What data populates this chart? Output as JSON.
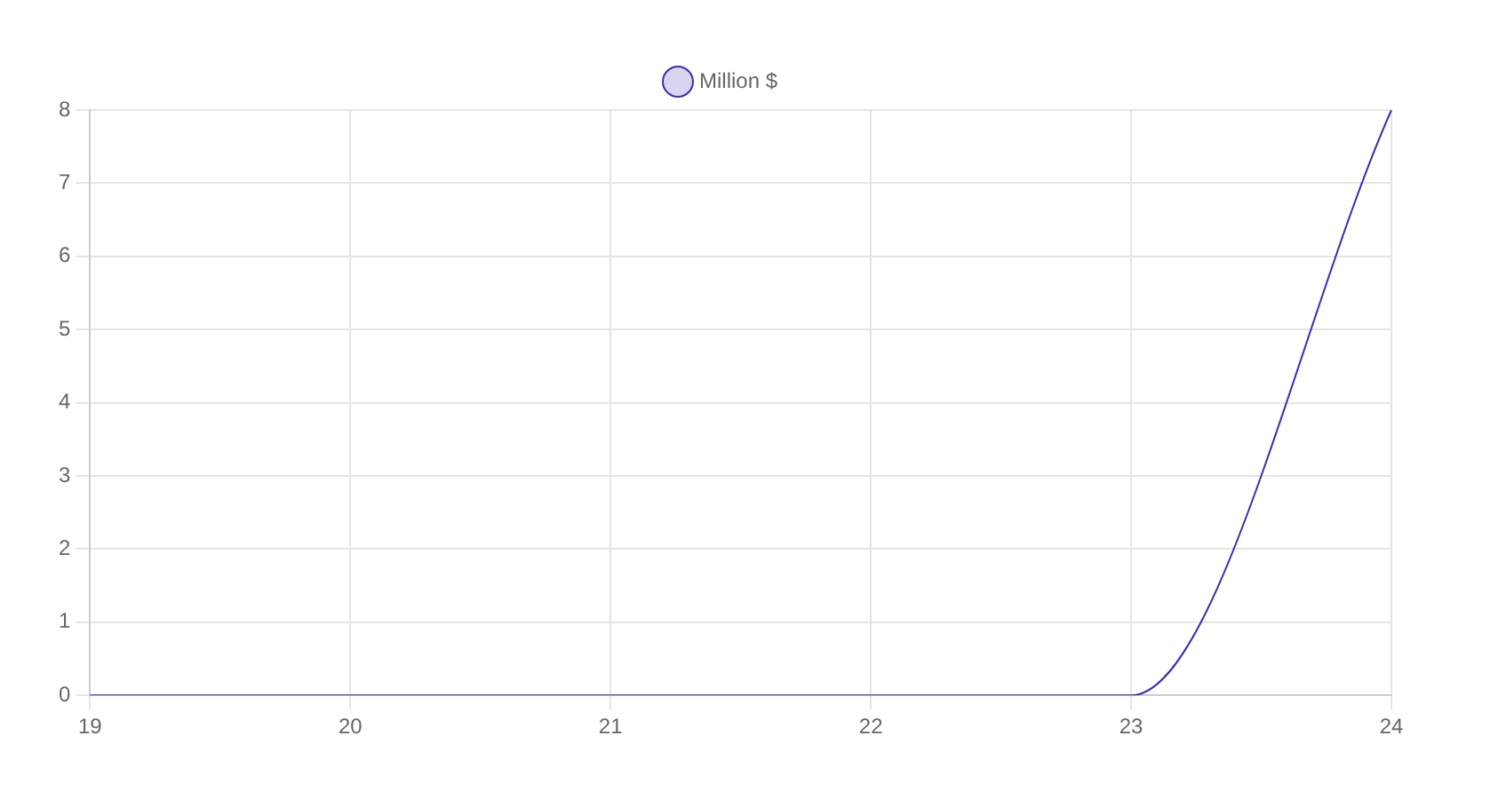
{
  "chart_data": {
    "type": "line",
    "categories": [
      "19",
      "20",
      "21",
      "22",
      "23",
      "24"
    ],
    "series": [
      {
        "name": "Million $",
        "color": "#3d2bb5",
        "values": [
          0,
          0,
          0,
          0,
          0,
          8
        ]
      }
    ],
    "ylim": [
      0,
      8
    ],
    "yticks": [
      0,
      1,
      2,
      3,
      4,
      5,
      6,
      7,
      8
    ],
    "grid": true,
    "legend": "top",
    "marker": "none"
  }
}
